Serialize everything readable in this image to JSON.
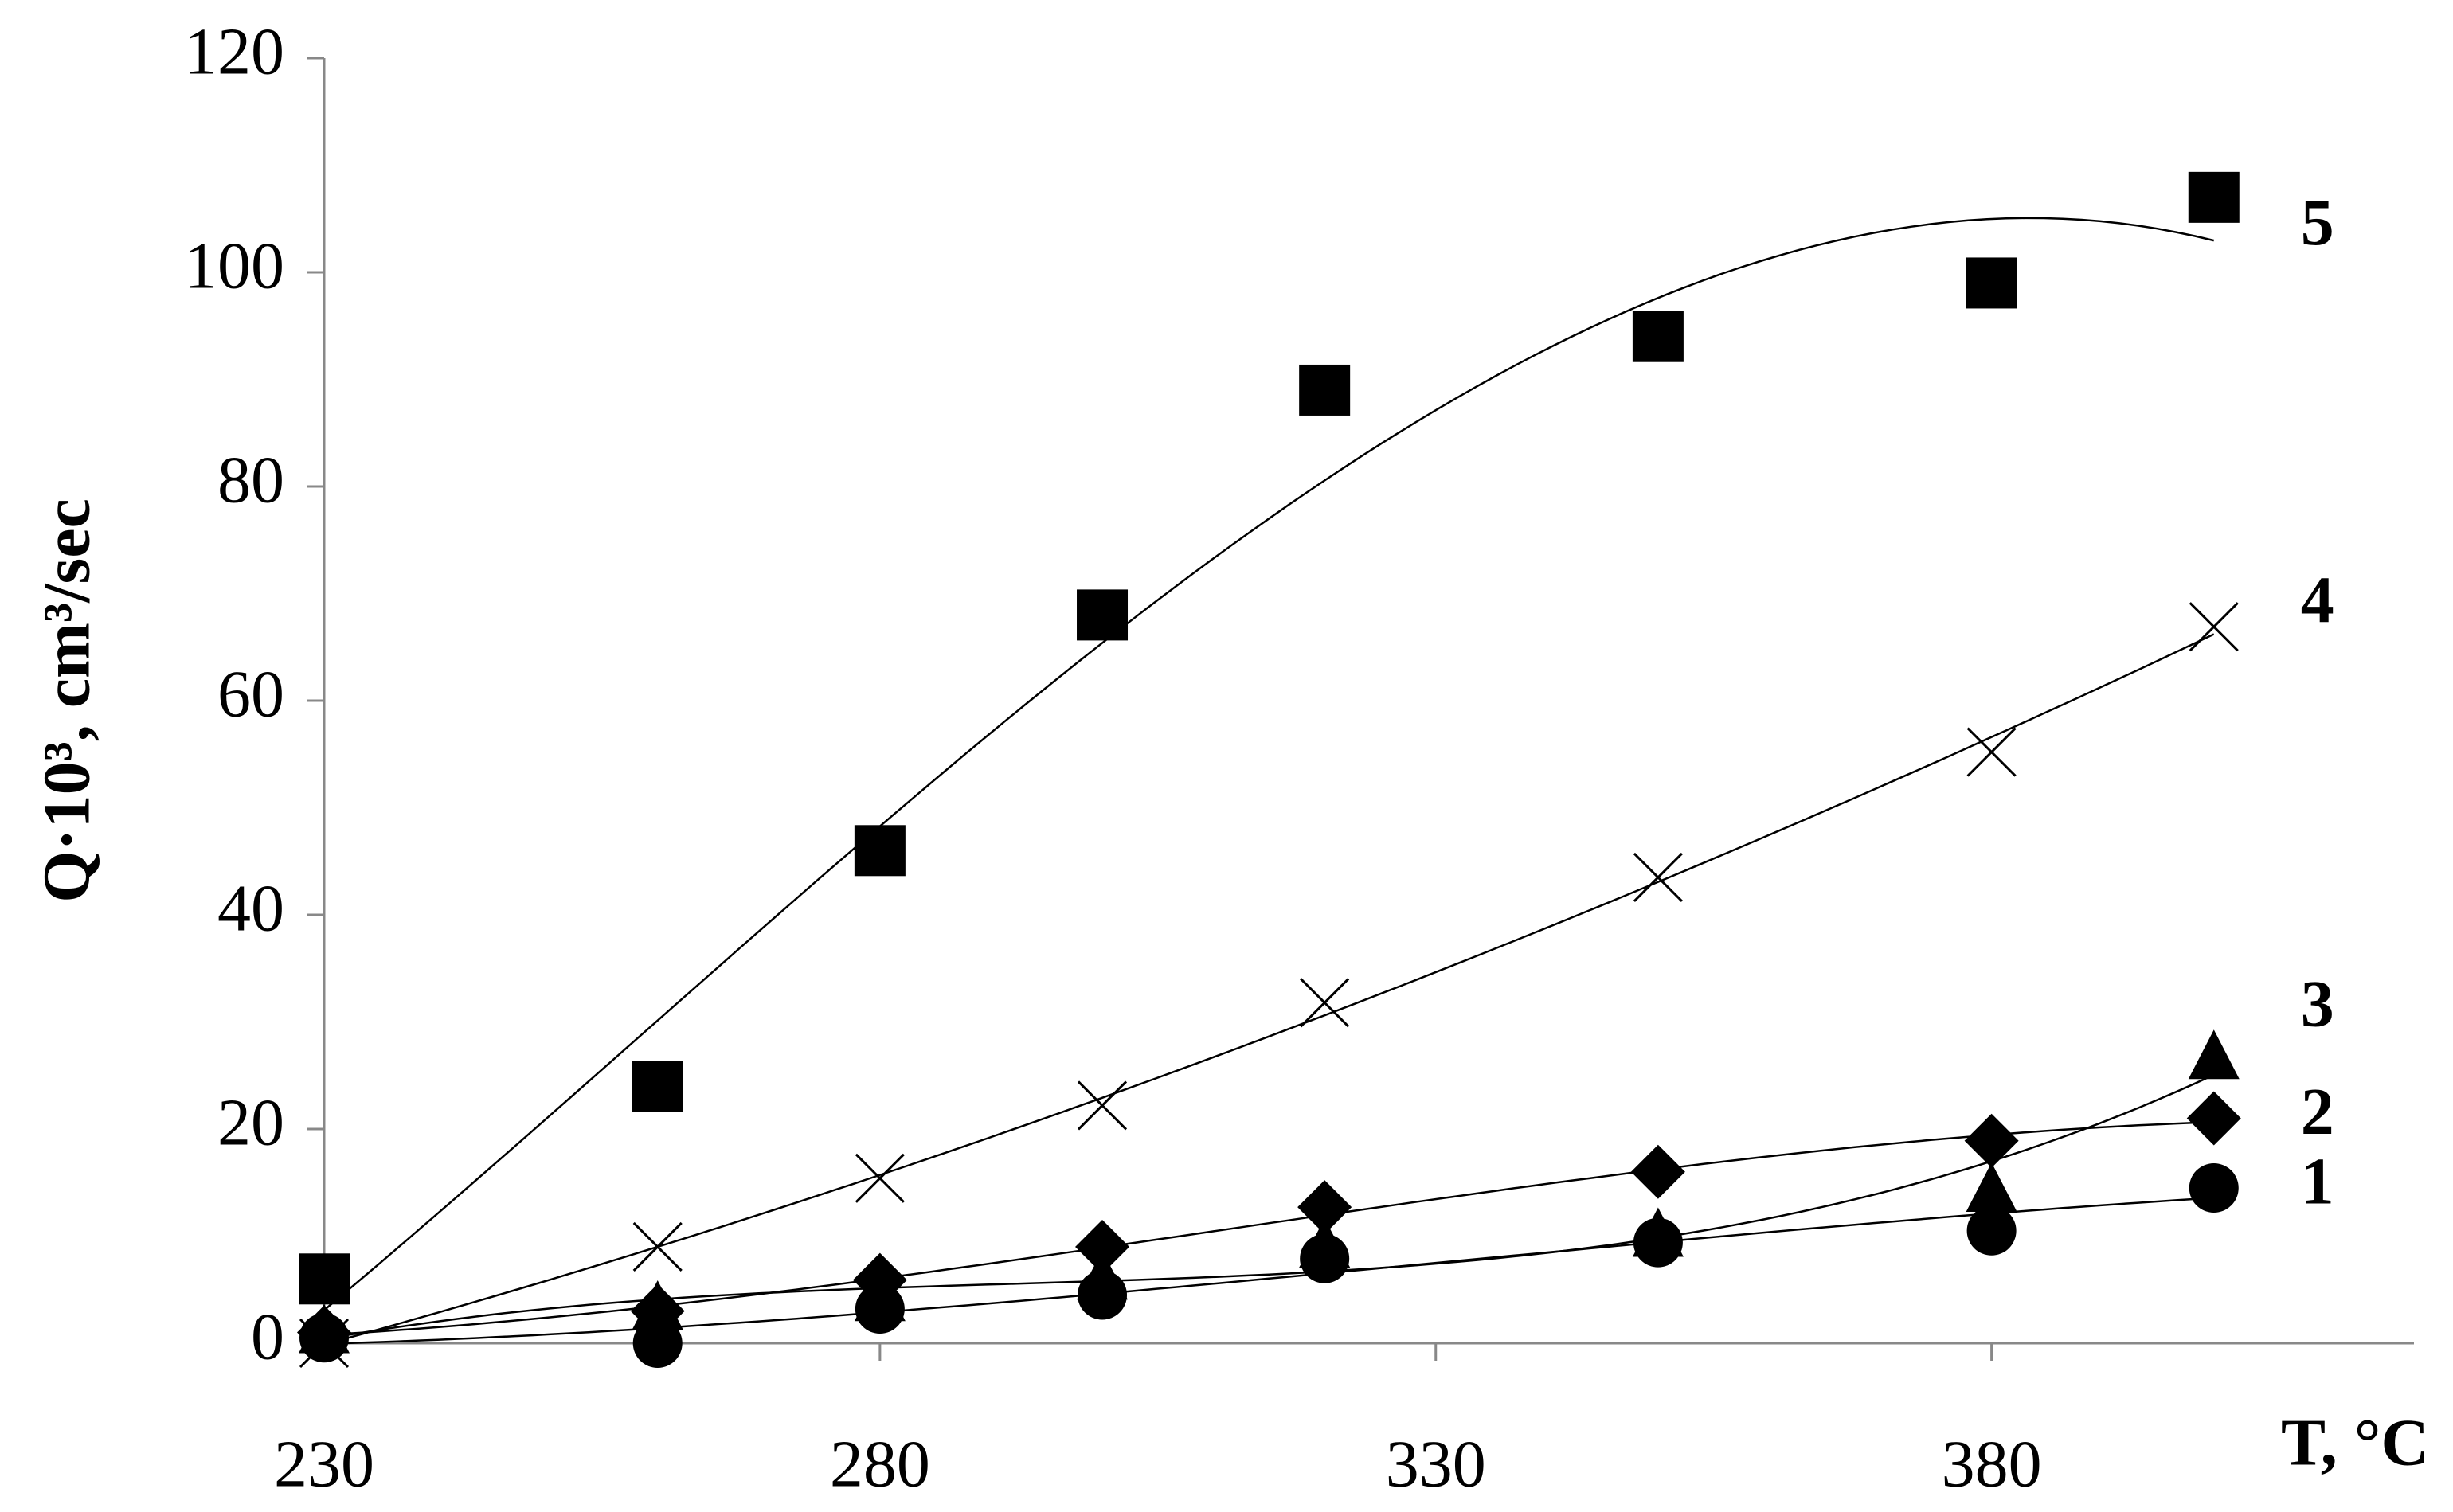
{
  "chart_data": {
    "type": "scatter",
    "y_label": "Q·10³, cm³/sec",
    "x_label": "T, °C",
    "x": [
      230,
      260,
      280,
      300,
      320,
      350,
      380,
      400
    ],
    "xlim": [
      230,
      418
    ],
    "xticks": [
      230,
      280,
      330,
      380
    ],
    "ylim": [
      0,
      120
    ],
    "yticks": [
      0,
      20,
      40,
      60,
      80,
      100,
      120
    ],
    "series": [
      {
        "name": "1",
        "color": "#000000",
        "marker": "circle",
        "values": [
          0.5,
          0,
          3.2,
          4.5,
          7.9,
          9.4,
          10.5,
          14.5
        ]
      },
      {
        "name": "2",
        "color": "#000000",
        "marker": "diamond",
        "values": [
          1,
          3,
          5.9,
          9,
          12.7,
          16,
          18.9,
          21
        ]
      },
      {
        "name": "3",
        "color": "#000000",
        "marker": "triangle",
        "values": [
          1,
          3.2,
          4,
          6,
          9,
          10,
          14.2,
          26.6
        ]
      },
      {
        "name": "4",
        "color": "#000000",
        "marker": "x",
        "values": [
          0,
          9,
          15.4,
          22.2,
          31.8,
          43.5,
          55.2,
          66.9
        ]
      },
      {
        "name": "5",
        "color": "#000000",
        "marker": "square",
        "values": [
          6,
          24,
          46,
          68,
          89,
          94,
          99,
          107
        ]
      }
    ]
  }
}
